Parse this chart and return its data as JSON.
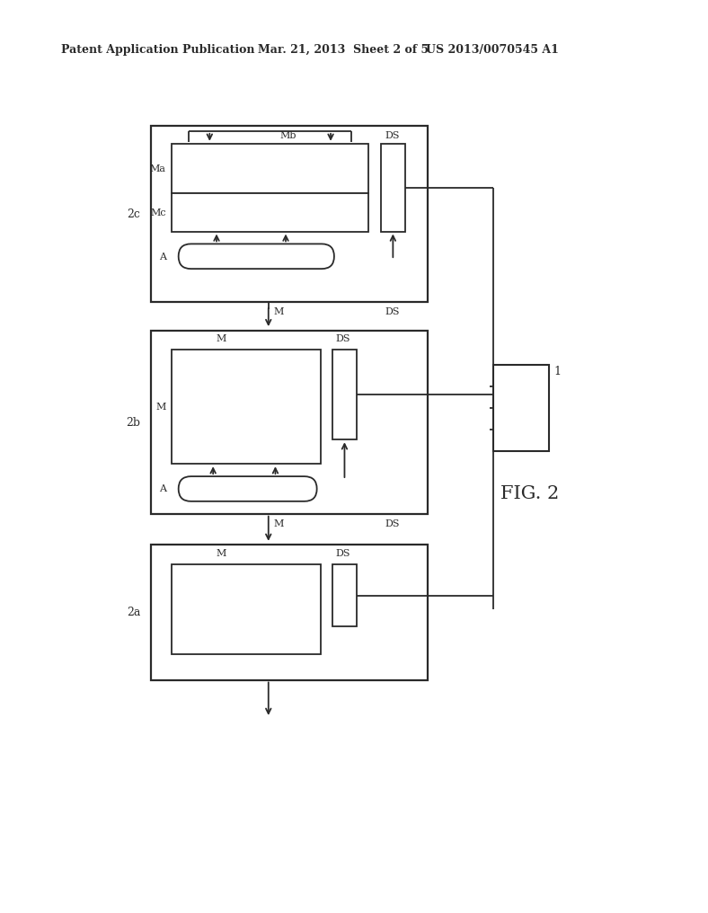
{
  "bg_color": "#ffffff",
  "header_left": "Patent Application Publication",
  "header_mid": "Mar. 21, 2013  Sheet 2 of 5",
  "header_right": "US 2013/0070545 A1",
  "fig_label": "FIG. 2",
  "lc": "#2a2a2a",
  "lw": 1.3
}
